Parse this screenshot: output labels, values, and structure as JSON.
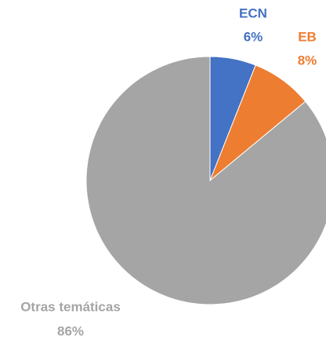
{
  "chart_data": {
    "type": "pie",
    "categories": [
      "ECN",
      "EB",
      "Otras temáticas"
    ],
    "values": [
      6,
      8,
      86
    ],
    "value_labels": [
      "6%",
      "8%",
      "86%"
    ],
    "colors": [
      "#4472c4",
      "#ed7d31",
      "#a5a5a5"
    ]
  }
}
